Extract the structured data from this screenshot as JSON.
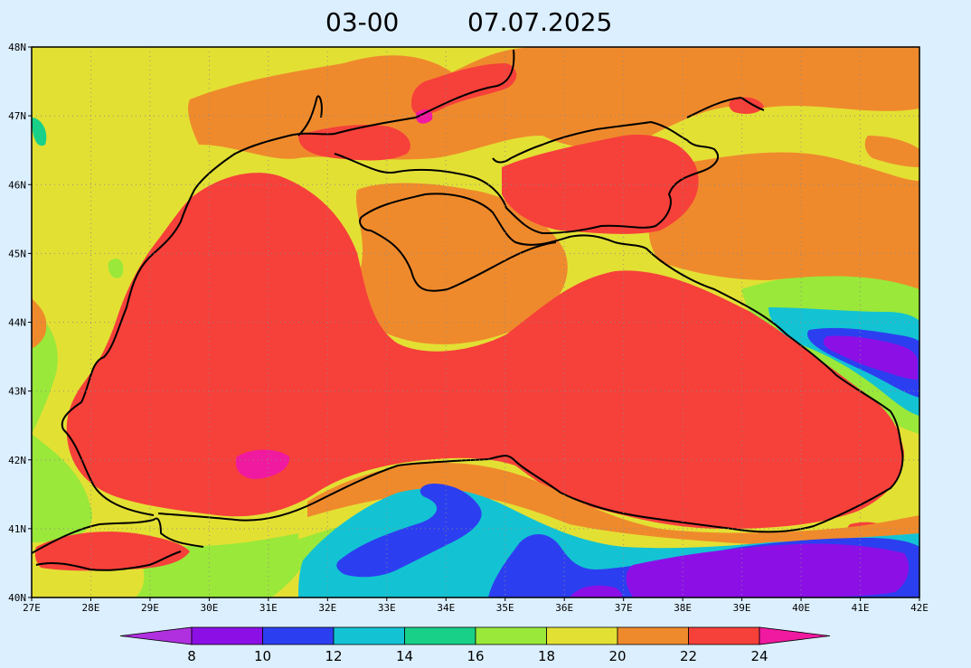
{
  "title": {
    "time": "03-00",
    "date": "07.07.2025"
  },
  "map": {
    "lon_range": [
      27,
      42
    ],
    "lat_range": [
      40,
      48
    ],
    "lon_ticks": [
      "27E",
      "28E",
      "29E",
      "30E",
      "31E",
      "32E",
      "33E",
      "34E",
      "35E",
      "36E",
      "37E",
      "38E",
      "39E",
      "40E",
      "41E",
      "42E"
    ],
    "lat_ticks": [
      "40N",
      "41N",
      "42N",
      "43N",
      "44N",
      "45N",
      "46N",
      "47N",
      "48N"
    ],
    "grid": "dotted"
  },
  "colorbar": {
    "labels": [
      "8",
      "10",
      "12",
      "14",
      "16",
      "18",
      "20",
      "22",
      "24"
    ],
    "colors": {
      "lt8": "#b030e0",
      "8_10": "#8c10e6",
      "10_12": "#2c3ff0",
      "12_14": "#13c3d3",
      "14_16": "#18d088",
      "16_18": "#9ae83a",
      "18_20": "#e3e034",
      "20_22": "#ef8a2c",
      "22_24": "#f6403a",
      "gt24": "#f01aa0"
    }
  }
}
